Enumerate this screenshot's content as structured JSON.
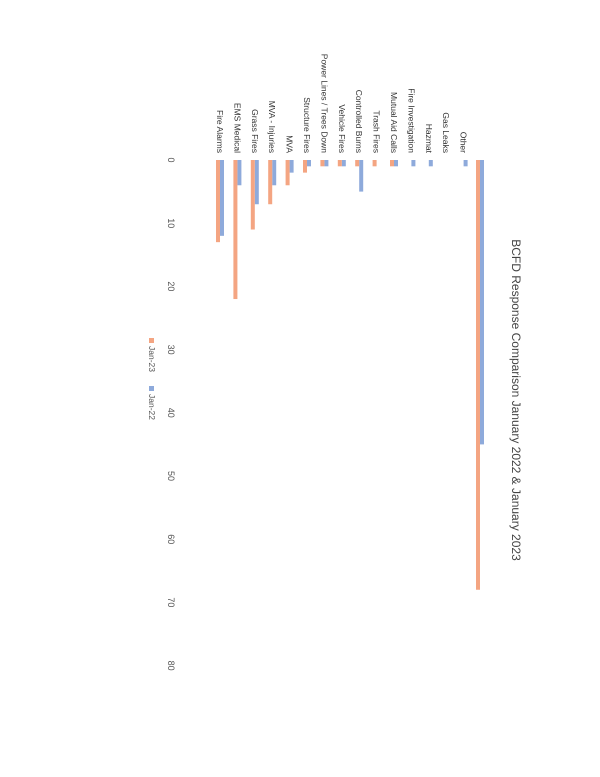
{
  "chart_data": {
    "type": "bar",
    "orientation": "horizontal",
    "page_rotation": "90deg clockwise (chart printed sideways on the page)",
    "title": "BCFD Response Comparison January 2022 & January 2023",
    "categories": [
      "Fire Alarms",
      "EMS Medical",
      "Grass Fires",
      "MVA - Injuries",
      "MVA",
      "Structure Fires",
      "Power Lines / Trees Down",
      "Vehicle Fires",
      "Controlled Burns",
      "Trash Fires",
      "Mutual Aid Calls",
      "Fire Investigation",
      "Hazmat",
      "Gas Leaks",
      "Other"
    ],
    "series": [
      {
        "name": "Jan-22",
        "color": "#8EAADB",
        "values": [
          12,
          4,
          7,
          4,
          2,
          1,
          1,
          1,
          5,
          0,
          1,
          1,
          1,
          0,
          1
        ]
      },
      {
        "name": "Jan-23",
        "color": "#F4A582",
        "values": [
          13,
          22,
          11,
          7,
          4,
          2,
          1,
          1,
          1,
          1,
          1,
          0,
          0,
          0,
          0
        ]
      }
    ],
    "extra_bars": [
      {
        "series": "Jan-22",
        "value": 45
      },
      {
        "series": "Jan-23",
        "value": 68
      }
    ],
    "x_ticks": [
      0,
      10,
      20,
      30,
      40,
      50,
      60,
      70,
      80
    ],
    "xlim": [
      0,
      80
    ],
    "legend": {
      "entries": [
        "Jan-23",
        "Jan-22"
      ],
      "placement": "bottom"
    },
    "grid": false
  }
}
